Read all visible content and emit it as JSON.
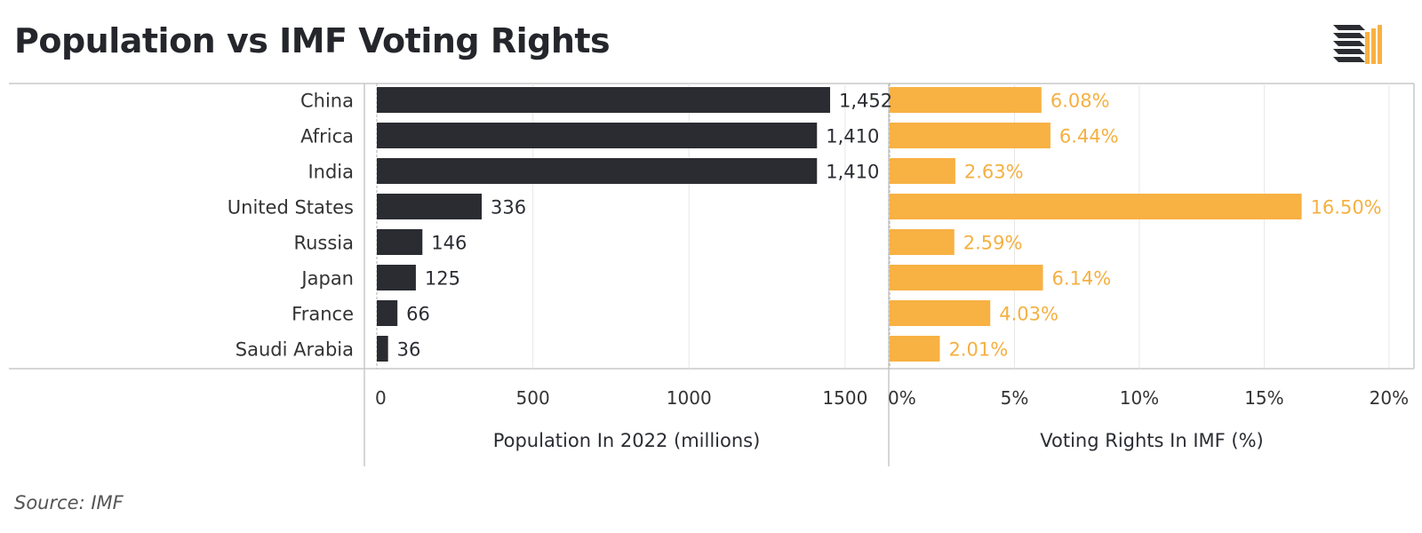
{
  "title": "Population vs IMF Voting Rights",
  "source": "Source: IMF",
  "colors": {
    "population": "#2a2c31",
    "voting": "#f8b143"
  },
  "icons": {
    "logo": "stacked-bars-logo-icon"
  },
  "chart_data": [
    {
      "type": "bar",
      "orientation": "horizontal",
      "categories": [
        "China",
        "Africa",
        "India",
        "United States",
        "Russia",
        "Japan",
        "France",
        "Saudi Arabia"
      ],
      "values": [
        1452,
        1410,
        1410,
        336,
        146,
        125,
        66,
        36
      ],
      "value_labels": [
        "1,452",
        "1,410",
        "1,410",
        "336",
        "146",
        "125",
        "66",
        "36"
      ],
      "xlabel": "Population In 2022 (millions)",
      "xlim": [
        0,
        1600
      ],
      "ticks": [
        0,
        500,
        1000,
        1500
      ],
      "tick_labels": [
        "0",
        "500",
        "1000",
        "1500"
      ],
      "grid": true
    },
    {
      "type": "bar",
      "orientation": "horizontal",
      "categories": [
        "China",
        "Africa",
        "India",
        "United States",
        "Russia",
        "Japan",
        "France",
        "Saudi Arabia"
      ],
      "values": [
        6.08,
        6.44,
        2.63,
        16.5,
        2.59,
        6.14,
        4.03,
        2.01
      ],
      "value_labels": [
        "6.08%",
        "6.44%",
        "2.63%",
        "16.50%",
        "2.59%",
        "6.14%",
        "4.03%",
        "2.01%"
      ],
      "xlabel": "Voting Rights In IMF (%)",
      "xlim": [
        0,
        21
      ],
      "ticks": [
        0,
        5,
        10,
        15,
        20
      ],
      "tick_labels": [
        "0%",
        "5%",
        "10%",
        "15%",
        "20%"
      ],
      "grid": true
    }
  ]
}
